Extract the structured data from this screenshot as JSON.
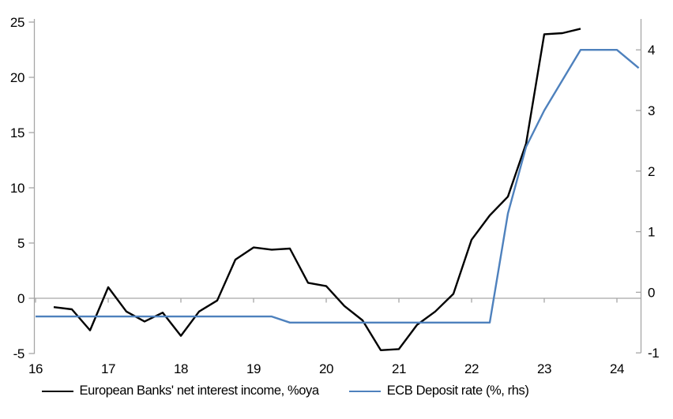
{
  "chart_data": {
    "type": "line",
    "title": "",
    "x_axis": {
      "tick_labels": [
        "16",
        "17",
        "18",
        "19",
        "20",
        "21",
        "22",
        "23",
        "24"
      ],
      "tick_values": [
        16,
        17,
        18,
        19,
        20,
        21,
        22,
        23,
        24
      ],
      "range": [
        16,
        24.34
      ]
    },
    "left_axis": {
      "tick_labels": [
        "25",
        "20",
        "15",
        "10",
        "5",
        "0",
        "-5"
      ],
      "tick_values": [
        25,
        20,
        15,
        10,
        5,
        0,
        -5
      ],
      "range": [
        -5,
        25.3
      ]
    },
    "right_axis": {
      "tick_labels": [
        "4",
        "3",
        "2",
        "1",
        "0",
        "-1"
      ],
      "tick_values": [
        4,
        3,
        2,
        1,
        0,
        -1
      ],
      "range": [
        -1.01,
        4.51
      ]
    },
    "grid": "horizontal-zero-line-only",
    "legend_position": "bottom",
    "series": [
      {
        "name": "European Banks' net interest income, %oya",
        "axis": "left",
        "color": "#000000",
        "x": [
          16.25,
          16.5,
          16.75,
          17.0,
          17.25,
          17.5,
          17.75,
          18.0,
          18.25,
          18.5,
          18.75,
          19.0,
          19.25,
          19.5,
          19.75,
          20.0,
          20.25,
          20.5,
          20.75,
          21.0,
          21.25,
          21.5,
          21.75,
          22.0,
          22.25,
          22.5,
          22.75,
          23.0,
          23.25,
          23.5
        ],
        "values": [
          -0.8,
          -1.0,
          -2.9,
          1.0,
          -1.2,
          -2.1,
          -1.3,
          -3.4,
          -1.2,
          -0.2,
          3.5,
          4.6,
          4.4,
          4.5,
          1.4,
          1.1,
          -0.7,
          -2.0,
          -4.7,
          -4.6,
          -2.4,
          -1.2,
          0.4,
          5.3,
          7.5,
          9.2,
          14.0,
          23.9,
          24.0,
          24.4
        ]
      },
      {
        "name": "ECB Deposit rate (%, rhs)",
        "axis": "right",
        "color": "#4E81BD",
        "x": [
          16.0,
          16.25,
          16.5,
          16.75,
          17.0,
          17.25,
          17.5,
          17.75,
          18.0,
          18.25,
          18.5,
          18.75,
          19.0,
          19.25,
          19.5,
          19.75,
          20.0,
          20.25,
          20.5,
          20.75,
          21.0,
          21.25,
          21.5,
          21.75,
          22.0,
          22.25,
          22.5,
          22.75,
          23.0,
          23.25,
          23.5,
          23.75,
          24.0,
          24.3
        ],
        "values": [
          -0.4,
          -0.4,
          -0.4,
          -0.4,
          -0.4,
          -0.4,
          -0.4,
          -0.4,
          -0.4,
          -0.4,
          -0.4,
          -0.4,
          -0.4,
          -0.4,
          -0.5,
          -0.5,
          -0.5,
          -0.5,
          -0.5,
          -0.5,
          -0.5,
          -0.5,
          -0.5,
          -0.5,
          -0.5,
          -0.5,
          1.3,
          2.4,
          3.0,
          3.5,
          4.0,
          4.0,
          4.0,
          3.7
        ]
      }
    ]
  },
  "colors": {
    "background": "#FFFFFF",
    "axis_gray": "#A6A6A6",
    "text": "#000000",
    "nii_line": "#000000",
    "ecb_line": "#4E81BD"
  }
}
